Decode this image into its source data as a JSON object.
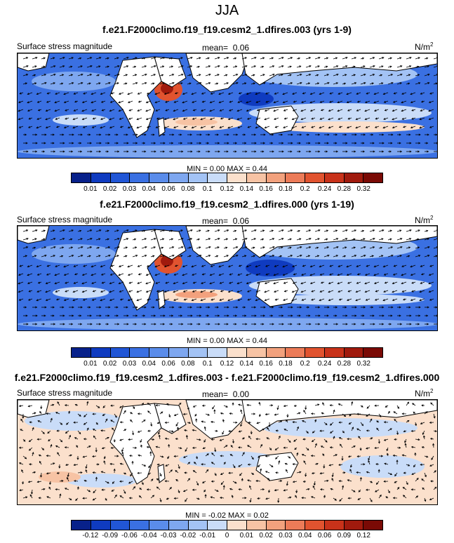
{
  "season": "JJA",
  "units": "N/m",
  "units_sup": "2",
  "mean_label": "mean=",
  "min_label": "MIN =",
  "max_label": "MAX =",
  "panels": [
    {
      "title": "f.e21.F2000climo.f19_f19.cesm2_1.dfires.003 (yrs 1-9)",
      "variable": "Surface stress magnitude",
      "mean": "0.06",
      "min": "0.00",
      "max": "0.44",
      "levels": [
        "0.01",
        "0.02",
        "0.03",
        "0.04",
        "0.06",
        "0.08",
        "0.1",
        "0.12",
        "0.14",
        "0.16",
        "0.18",
        "0.2",
        "0.24",
        "0.28",
        "0.32"
      ]
    },
    {
      "title": "f.e21.F2000climo.f19_f19.cesm2_1.dfires.000 (yrs 1-19)",
      "variable": "Surface stress magnitude",
      "mean": "0.06",
      "min": "0.00",
      "max": "0.44",
      "levels": [
        "0.01",
        "0.02",
        "0.03",
        "0.04",
        "0.06",
        "0.08",
        "0.1",
        "0.12",
        "0.14",
        "0.16",
        "0.18",
        "0.2",
        "0.24",
        "0.28",
        "0.32"
      ]
    },
    {
      "title": "f.e21.F2000climo.f19_f19.cesm2_1.dfires.003 - f.e21.F2000climo.f19_f19.cesm2_1.dfires.000",
      "variable": "Surface stress magnitude",
      "mean": "0.00",
      "min": "-0.02",
      "max": "0.02",
      "levels": [
        "-0.12",
        "-0.09",
        "-0.06",
        "-0.04",
        "-0.03",
        "-0.02",
        "-0.01",
        "0",
        "0.01",
        "0.02",
        "0.03",
        "0.04",
        "0.06",
        "0.09",
        "0.12"
      ]
    }
  ],
  "palette": [
    "#08218a",
    "#0f3bc0",
    "#2156d6",
    "#3a70e2",
    "#5a8cea",
    "#7ea7f0",
    "#a3c3f5",
    "#c9dcf8",
    "#fbe0cc",
    "#f7c3a4",
    "#f2a17d",
    "#ec7b58",
    "#e1532f",
    "#c8321a",
    "#a01a0d",
    "#7a0a05"
  ]
}
